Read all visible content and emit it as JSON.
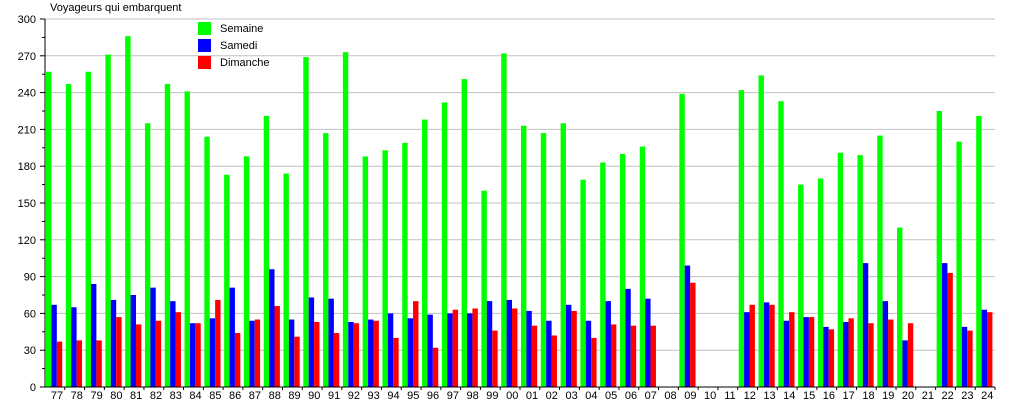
{
  "chart_data": {
    "type": "bar",
    "title": "",
    "ylabel": "Voyageurs qui embarquent",
    "xlabel": "",
    "ylim": [
      0,
      300
    ],
    "yticks": [
      0,
      30,
      60,
      90,
      120,
      150,
      180,
      210,
      240,
      270,
      300
    ],
    "grid": true,
    "legend_position": "top-left",
    "categories": [
      "77",
      "78",
      "79",
      "80",
      "81",
      "82",
      "83",
      "84",
      "85",
      "86",
      "87",
      "88",
      "89",
      "90",
      "91",
      "92",
      "93",
      "94",
      "95",
      "96",
      "97",
      "98",
      "99",
      "00",
      "01",
      "02",
      "03",
      "04",
      "05",
      "06",
      "07",
      "08",
      "09",
      "10",
      "11",
      "12",
      "13",
      "14",
      "15",
      "16",
      "17",
      "18",
      "19",
      "20",
      "21",
      "22",
      "23",
      "24"
    ],
    "series": [
      {
        "name": "Semaine",
        "color": "#00ff00",
        "values": [
          257,
          247,
          257,
          271,
          286,
          215,
          247,
          241,
          204,
          173,
          188,
          221,
          174,
          269,
          207,
          273,
          188,
          193,
          199,
          218,
          232,
          251,
          160,
          272,
          213,
          207,
          215,
          169,
          183,
          190,
          196,
          null,
          239,
          null,
          null,
          242,
          254,
          233,
          165,
          170,
          191,
          189,
          205,
          130,
          null,
          225,
          200,
          221
        ]
      },
      {
        "name": "Samedi",
        "color": "#0000ff",
        "values": [
          67,
          65,
          84,
          71,
          75,
          81,
          70,
          52,
          56,
          81,
          54,
          96,
          55,
          73,
          72,
          53,
          55,
          60,
          56,
          59,
          60,
          60,
          70,
          71,
          62,
          54,
          67,
          54,
          70,
          80,
          72,
          null,
          99,
          null,
          null,
          61,
          69,
          54,
          57,
          49,
          53,
          101,
          70,
          38,
          null,
          101,
          49,
          63
        ]
      },
      {
        "name": "Dimanche",
        "color": "#ff0000",
        "values": [
          37,
          38,
          38,
          57,
          51,
          54,
          61,
          52,
          71,
          44,
          55,
          66,
          41,
          53,
          44,
          52,
          54,
          40,
          70,
          32,
          63,
          64,
          46,
          64,
          50,
          42,
          62,
          40,
          51,
          50,
          50,
          null,
          85,
          null,
          null,
          67,
          67,
          61,
          57,
          47,
          56,
          52,
          55,
          52,
          null,
          93,
          46,
          61
        ]
      }
    ]
  }
}
